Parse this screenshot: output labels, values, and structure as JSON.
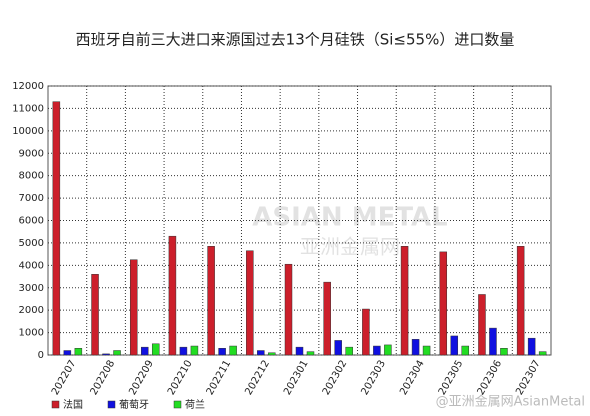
{
  "chart_data": {
    "type": "bar",
    "title": "西班牙自前三大进口来源国过去13个月硅铁（Si≤55%）进口数量",
    "watermark": "ASIAN METAL",
    "watermark_cn": "亚洲金属网",
    "credit": "@亚洲金属网AsianMetal",
    "categories": [
      "202207",
      "202208",
      "202209",
      "202210",
      "202211",
      "202212",
      "202301",
      "202302",
      "202303",
      "202304",
      "202305",
      "202306",
      "202307"
    ],
    "series": [
      {
        "name": "法国",
        "color": "#cc1f2b",
        "values": [
          11300,
          3600,
          4250,
          5300,
          4850,
          4650,
          4050,
          3250,
          2050,
          4850,
          4600,
          2700,
          4850
        ]
      },
      {
        "name": "葡萄牙",
        "color": "#1010e0",
        "values": [
          200,
          50,
          350,
          350,
          300,
          200,
          350,
          650,
          400,
          700,
          850,
          1200,
          750
        ]
      },
      {
        "name": "荷兰",
        "color": "#22dd22",
        "values": [
          300,
          200,
          500,
          400,
          400,
          100,
          150,
          350,
          450,
          400,
          400,
          300,
          150
        ]
      }
    ],
    "ylim": [
      0,
      12000
    ],
    "yticks": [
      0,
      1000,
      2000,
      3000,
      4000,
      5000,
      6000,
      7000,
      8000,
      9000,
      10000,
      11000,
      12000
    ],
    "grid": true
  }
}
